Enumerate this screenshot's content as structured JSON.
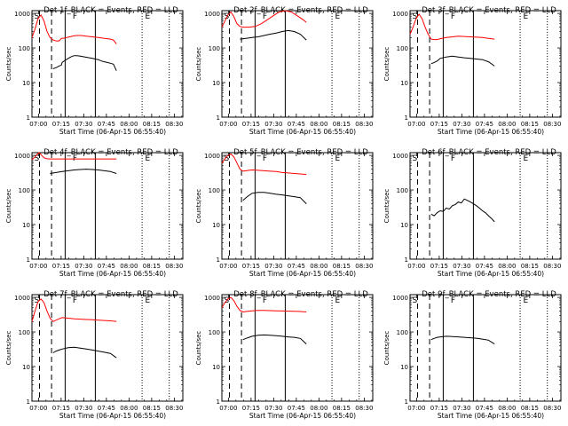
{
  "chart_data": [
    {
      "type": "line",
      "title": "Det 1f_BLACK = Events, RED = LLD",
      "xlabel": "Start Time (06-Apr-15 06:55:40)",
      "ylabel": "Counts/sec",
      "x_ticks": [
        "07:00",
        "07:15",
        "07:30",
        "07:45",
        "08:00",
        "08:15",
        "08:30"
      ],
      "y_ticks": [
        "1",
        "10",
        "100",
        "1000"
      ],
      "yscale": "log",
      "ylim": [
        1,
        1200
      ],
      "xlim_minutes": [
        0,
        100
      ],
      "markers": [
        {
          "label": "S",
          "x": 1.5
        },
        {
          "label": "F",
          "x": 27
        },
        {
          "label": "E",
          "x": 75
        }
      ],
      "dashed_x": [
        5,
        13
      ],
      "solid_x": [
        22,
        42
      ],
      "dotted_x": [
        73,
        91
      ],
      "series": [
        {
          "color": "#ff0000",
          "x": [
            0,
            2,
            4,
            6,
            8,
            10,
            12,
            14,
            16,
            18,
            19.5,
            20,
            22,
            24,
            26,
            28,
            30,
            32,
            34,
            36,
            38,
            40,
            42,
            44,
            46,
            48,
            50,
            52,
            54,
            56
          ],
          "y": [
            200,
            350,
            700,
            900,
            600,
            300,
            200,
            170,
            160,
            160,
            190,
            190,
            195,
            205,
            215,
            225,
            230,
            230,
            225,
            220,
            215,
            210,
            205,
            200,
            195,
            190,
            185,
            180,
            170,
            130
          ]
        },
        {
          "color": "#000000",
          "x": [
            14,
            16,
            18,
            19.5,
            20,
            22,
            24,
            26,
            28,
            30,
            32,
            34,
            36,
            38,
            40,
            42,
            44,
            46,
            48,
            50,
            52,
            54,
            56
          ],
          "y": [
            25,
            27,
            30,
            32,
            38,
            44,
            50,
            56,
            60,
            60,
            58,
            56,
            54,
            52,
            50,
            48,
            46,
            42,
            40,
            38,
            36,
            34,
            22
          ]
        }
      ]
    },
    {
      "type": "line",
      "title": "Det 2f_BLACK = Events, RED = LLD",
      "xlabel": "Start Time (06-Apr-15 06:55:40)",
      "ylabel": "Counts/sec",
      "x_ticks": [
        "07:00",
        "07:15",
        "07:30",
        "07:45",
        "08:00",
        "08:15",
        "08:30"
      ],
      "y_ticks": [
        "1",
        "10",
        "100",
        "1000"
      ],
      "yscale": "log",
      "ylim": [
        1,
        1200
      ],
      "xlim_minutes": [
        0,
        100
      ],
      "markers": [
        {
          "label": "S",
          "x": 1.5
        },
        {
          "label": "F",
          "x": 27
        },
        {
          "label": "E",
          "x": 75
        }
      ],
      "dashed_x": [
        5,
        13
      ],
      "solid_x": [
        22,
        42
      ],
      "dotted_x": [
        73,
        91
      ],
      "series": [
        {
          "color": "#ff0000",
          "x": [
            0,
            2,
            4,
            6,
            8,
            10,
            12,
            14,
            18,
            22,
            26,
            30,
            34,
            38,
            42,
            46,
            50,
            54,
            56
          ],
          "y": [
            400,
            600,
            900,
            1100,
            800,
            500,
            420,
            400,
            400,
            420,
            500,
            650,
            850,
            1100,
            1200,
            1100,
            850,
            650,
            550
          ]
        },
        {
          "color": "#000000",
          "x": [
            12,
            16,
            20,
            24,
            28,
            32,
            36,
            40,
            44,
            48,
            52,
            56
          ],
          "y": [
            180,
            190,
            200,
            210,
            230,
            250,
            270,
            300,
            320,
            300,
            250,
            170
          ]
        }
      ]
    },
    {
      "type": "line",
      "title": "Det 3f_BLACK = Events, RED = LLD",
      "xlabel": "Start Time (06-Apr-15 06:55:40)",
      "ylabel": "Counts/sec",
      "x_ticks": [
        "07:00",
        "07:15",
        "07:30",
        "07:45",
        "08:00",
        "08:15",
        "08:30"
      ],
      "y_ticks": [
        "1",
        "10",
        "100",
        "1000"
      ],
      "yscale": "log",
      "ylim": [
        1,
        1200
      ],
      "xlim_minutes": [
        0,
        100
      ],
      "markers": [
        {
          "label": "S",
          "x": 1.5
        },
        {
          "label": "F",
          "x": 27
        },
        {
          "label": "E",
          "x": 75
        }
      ],
      "dashed_x": [
        5,
        13
      ],
      "solid_x": [
        22,
        42
      ],
      "dotted_x": [
        73,
        91
      ],
      "series": [
        {
          "color": "#ff0000",
          "x": [
            0,
            2,
            4,
            6,
            8,
            10,
            12,
            14,
            16,
            18,
            20,
            24,
            28,
            32,
            36,
            40,
            44,
            48,
            52,
            56
          ],
          "y": [
            250,
            400,
            700,
            950,
            700,
            400,
            250,
            180,
            175,
            175,
            185,
            200,
            210,
            220,
            215,
            210,
            205,
            200,
            190,
            180
          ]
        },
        {
          "color": "#000000",
          "x": [
            14,
            16,
            18,
            20,
            24,
            28,
            32,
            36,
            40,
            44,
            48,
            52,
            56
          ],
          "y": [
            35,
            38,
            42,
            50,
            55,
            58,
            55,
            52,
            50,
            48,
            46,
            40,
            30
          ]
        }
      ]
    },
    {
      "type": "line",
      "title": "Det 4f_BLACK = Events, RED = LLD",
      "xlabel": "Start Time (06-Apr-15 06:55:40)",
      "ylabel": "Counts/sec",
      "x_ticks": [
        "07:00",
        "07:15",
        "07:30",
        "07:45",
        "08:00",
        "08:15",
        "08:30"
      ],
      "y_ticks": [
        "1",
        "10",
        "100",
        "1000"
      ],
      "yscale": "log",
      "ylim": [
        1,
        1200
      ],
      "xlim_minutes": [
        0,
        100
      ],
      "markers": [
        {
          "label": "S",
          "x": 1.5
        },
        {
          "label": "F",
          "x": 27
        },
        {
          "label": "E",
          "x": 75
        }
      ],
      "dashed_x": [
        5,
        13
      ],
      "solid_x": [
        22,
        42
      ],
      "dotted_x": [
        73,
        91
      ],
      "series": [
        {
          "color": "#ff0000",
          "x": [
            0,
            2,
            4,
            5,
            6,
            8,
            10,
            12,
            14,
            18,
            22,
            26,
            30,
            34,
            38,
            42,
            46,
            50,
            54,
            56
          ],
          "y": [
            750,
            900,
            1150,
            1200,
            1050,
            850,
            800,
            790,
            790,
            790,
            790,
            790,
            790,
            790,
            790,
            790,
            790,
            790,
            790,
            790
          ]
        },
        {
          "color": "#000000",
          "x": [
            12,
            16,
            20,
            24,
            28,
            32,
            36,
            40,
            44,
            48,
            52,
            56
          ],
          "y": [
            300,
            320,
            340,
            360,
            380,
            390,
            400,
            390,
            380,
            360,
            340,
            300
          ]
        }
      ]
    },
    {
      "type": "line",
      "title": "Det 5f_BLACK = Events, RED = LLD",
      "xlabel": "Start Time (06-Apr-15 06:55:40)",
      "ylabel": "Counts/sec",
      "x_ticks": [
        "07:00",
        "07:15",
        "07:30",
        "07:45",
        "08:00",
        "08:15",
        "08:30"
      ],
      "y_ticks": [
        "1",
        "10",
        "100",
        "1000"
      ],
      "yscale": "log",
      "ylim": [
        1,
        1200
      ],
      "xlim_minutes": [
        0,
        100
      ],
      "markers": [
        {
          "label": "S",
          "x": 1.5
        },
        {
          "label": "F",
          "x": 27
        },
        {
          "label": "E",
          "x": 75
        }
      ],
      "dashed_x": [
        5,
        13
      ],
      "solid_x": [
        22,
        42
      ],
      "dotted_x": [
        73,
        91
      ],
      "series": [
        {
          "color": "#ff0000",
          "x": [
            0,
            2,
            4,
            6,
            8,
            10,
            12,
            14,
            16,
            18,
            20,
            24,
            28,
            32,
            36,
            40,
            44,
            48,
            52,
            56
          ],
          "y": [
            600,
            800,
            1000,
            1100,
            900,
            600,
            400,
            350,
            360,
            370,
            380,
            370,
            360,
            350,
            340,
            320,
            310,
            300,
            290,
            280
          ]
        },
        {
          "color": "#000000",
          "x": [
            14,
            16,
            18,
            20,
            24,
            28,
            32,
            36,
            40,
            44,
            48,
            52,
            56
          ],
          "y": [
            50,
            60,
            70,
            80,
            85,
            85,
            80,
            75,
            72,
            68,
            64,
            60,
            40
          ]
        }
      ]
    },
    {
      "type": "line",
      "title": "Det 6f_BLACK = Events, RED = LLD",
      "xlabel": "Start Time (06-Apr-15 06:55:40)",
      "ylabel": "Counts/sec",
      "x_ticks": [
        "07:00",
        "07:15",
        "07:30",
        "07:45",
        "08:00",
        "08:15",
        "08:30"
      ],
      "y_ticks": [
        "1",
        "10",
        "100",
        "1000"
      ],
      "yscale": "log",
      "ylim": [
        1,
        1200
      ],
      "xlim_minutes": [
        0,
        100
      ],
      "markers": [
        {
          "label": "S",
          "x": 1.5
        },
        {
          "label": "F",
          "x": 27
        },
        {
          "label": "E",
          "x": 75
        }
      ],
      "dashed_x": [
        5,
        13
      ],
      "solid_x": [
        22,
        42
      ],
      "dotted_x": [
        73,
        91
      ],
      "series": [
        {
          "color": "#000000",
          "x": [
            14,
            16,
            18,
            20,
            22,
            24,
            26,
            28,
            30,
            32,
            34,
            36,
            38,
            40,
            42,
            44,
            46,
            48,
            50,
            52,
            54,
            56
          ],
          "y": [
            20,
            18,
            22,
            25,
            24,
            30,
            28,
            35,
            38,
            45,
            42,
            55,
            50,
            45,
            40,
            35,
            30,
            25,
            22,
            18,
            15,
            12
          ]
        }
      ]
    },
    {
      "type": "line",
      "title": "Det 7f_BLACK = Events, RED = LLD",
      "xlabel": "Start Time (06-Apr-15 06:55:40)",
      "ylabel": "Counts/sec",
      "x_ticks": [
        "07:00",
        "07:15",
        "07:30",
        "07:45",
        "08:00",
        "08:15",
        "08:30"
      ],
      "y_ticks": [
        "1",
        "10",
        "100",
        "1000"
      ],
      "yscale": "log",
      "ylim": [
        1,
        1200
      ],
      "xlim_minutes": [
        0,
        100
      ],
      "markers": [
        {
          "label": "S",
          "x": 1.5
        },
        {
          "label": "F",
          "x": 27
        },
        {
          "label": "E",
          "x": 75
        }
      ],
      "dashed_x": [
        5,
        13
      ],
      "solid_x": [
        22,
        42
      ],
      "dotted_x": [
        73,
        91
      ],
      "series": [
        {
          "color": "#ff0000",
          "x": [
            0,
            2,
            4,
            6,
            8,
            10,
            12,
            14,
            16,
            18,
            20,
            24,
            28,
            32,
            36,
            40,
            44,
            48,
            52,
            56
          ],
          "y": [
            200,
            400,
            750,
            900,
            700,
            400,
            250,
            200,
            220,
            240,
            260,
            250,
            240,
            235,
            230,
            225,
            220,
            215,
            210,
            200
          ]
        },
        {
          "color": "#000000",
          "x": [
            14,
            16,
            18,
            20,
            24,
            28,
            32,
            36,
            40,
            44,
            48,
            52,
            56
          ],
          "y": [
            25,
            28,
            30,
            32,
            35,
            36,
            34,
            32,
            30,
            28,
            26,
            24,
            18
          ]
        }
      ]
    },
    {
      "type": "line",
      "title": "Det 8f_BLACK = Events, RED = LLD",
      "xlabel": "Start Time (06-Apr-15 06:55:40)",
      "ylabel": "Counts/sec",
      "x_ticks": [
        "07:00",
        "07:15",
        "07:30",
        "07:45",
        "08:00",
        "08:15",
        "08:30"
      ],
      "y_ticks": [
        "1",
        "10",
        "100",
        "1000"
      ],
      "yscale": "log",
      "ylim": [
        1,
        1200
      ],
      "xlim_minutes": [
        0,
        100
      ],
      "markers": [
        {
          "label": "S",
          "x": 1.5
        },
        {
          "label": "F",
          "x": 27
        },
        {
          "label": "E",
          "x": 75
        }
      ],
      "dashed_x": [
        5,
        13
      ],
      "solid_x": [
        22,
        42
      ],
      "dotted_x": [
        73,
        91
      ],
      "series": [
        {
          "color": "#ff0000",
          "x": [
            0,
            2,
            4,
            6,
            8,
            10,
            12,
            14,
            16,
            18,
            20,
            24,
            28,
            32,
            36,
            40,
            44,
            48,
            52,
            56
          ],
          "y": [
            500,
            700,
            900,
            1000,
            800,
            550,
            420,
            380,
            390,
            400,
            410,
            420,
            420,
            415,
            410,
            405,
            400,
            395,
            390,
            380
          ]
        },
        {
          "color": "#000000",
          "x": [
            14,
            16,
            18,
            20,
            24,
            28,
            32,
            36,
            40,
            44,
            48,
            52,
            56
          ],
          "y": [
            60,
            65,
            70,
            75,
            80,
            82,
            80,
            78,
            75,
            72,
            70,
            65,
            45
          ]
        }
      ]
    },
    {
      "type": "line",
      "title": "Det 9f_BLACK = Events, RED = LLD",
      "xlabel": "Start Time (06-Apr-15 06:55:40)",
      "ylabel": "Counts/sec",
      "x_ticks": [
        "07:00",
        "07:15",
        "07:30",
        "07:45",
        "08:00",
        "08:15",
        "08:30"
      ],
      "y_ticks": [
        "1",
        "10",
        "100",
        "1000"
      ],
      "yscale": "log",
      "ylim": [
        1,
        1200
      ],
      "xlim_minutes": [
        0,
        100
      ],
      "markers": [
        {
          "label": "S",
          "x": 1.5
        },
        {
          "label": "F",
          "x": 27
        },
        {
          "label": "E",
          "x": 75
        }
      ],
      "dashed_x": [
        5,
        13
      ],
      "solid_x": [
        22,
        42
      ],
      "dotted_x": [
        73,
        91
      ],
      "series": [
        {
          "color": "#000000",
          "x": [
            14,
            16,
            18,
            20,
            24,
            28,
            32,
            36,
            40,
            44,
            48,
            52,
            56
          ],
          "y": [
            60,
            65,
            70,
            72,
            75,
            74,
            72,
            70,
            68,
            66,
            62,
            58,
            45
          ]
        }
      ]
    }
  ]
}
